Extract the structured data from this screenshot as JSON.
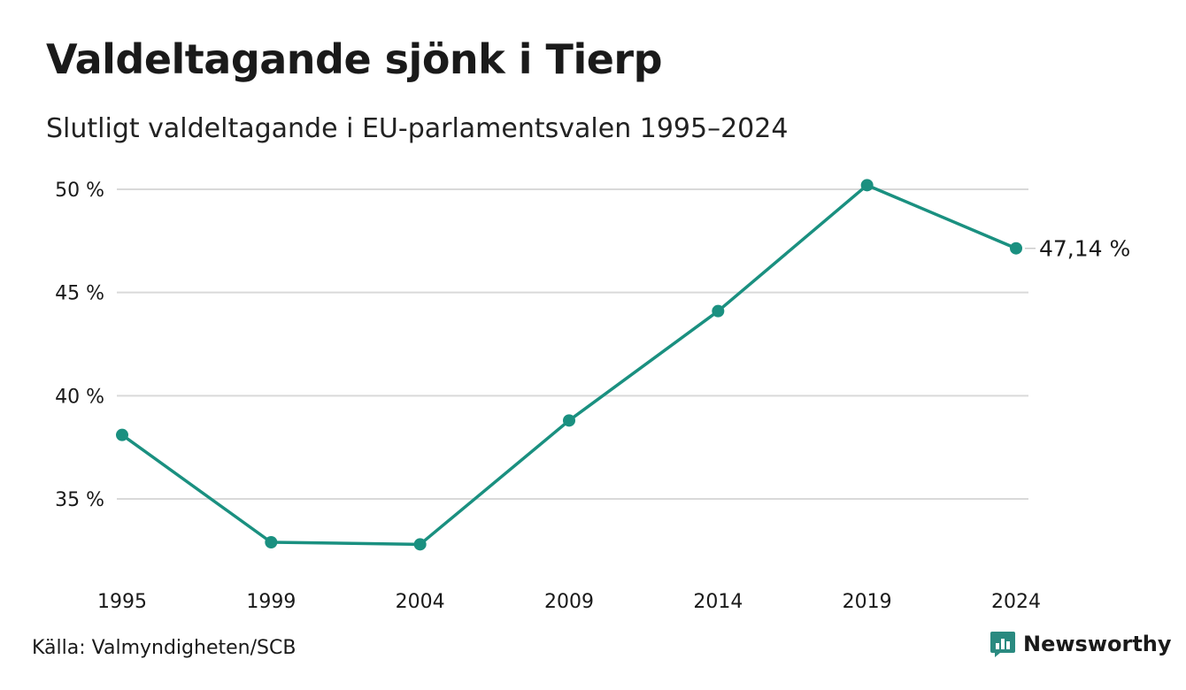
{
  "header": {
    "title": "Valdeltagande sjönk i Tierp",
    "subtitle": "Slutligt valdeltagande i EU-parlamentsvalen 1995–2024"
  },
  "footer": {
    "source": "Källa: Valmyndigheten/SCB",
    "brand": "Newsworthy"
  },
  "colors": {
    "line": "#1a9080",
    "grid": "#d9d9d9",
    "brand": "#2a8a80"
  },
  "chart_data": {
    "type": "line",
    "title": "Valdeltagande sjönk i Tierp",
    "subtitle": "Slutligt valdeltagande i EU-parlamentsvalen 1995–2024",
    "xlabel": "",
    "ylabel": "",
    "categories": [
      "1995",
      "1999",
      "2004",
      "2009",
      "2014",
      "2019",
      "2024"
    ],
    "values": [
      38.1,
      32.9,
      32.8,
      38.8,
      44.1,
      50.2,
      47.14
    ],
    "ylim": [
      30.5,
      51.5
    ],
    "yticks": [
      35,
      40,
      45,
      50
    ],
    "ytick_labels": [
      "35 %",
      "40 %",
      "45 %",
      "50 %"
    ],
    "end_label": "47,14 %",
    "grid": true,
    "legend": "none"
  }
}
